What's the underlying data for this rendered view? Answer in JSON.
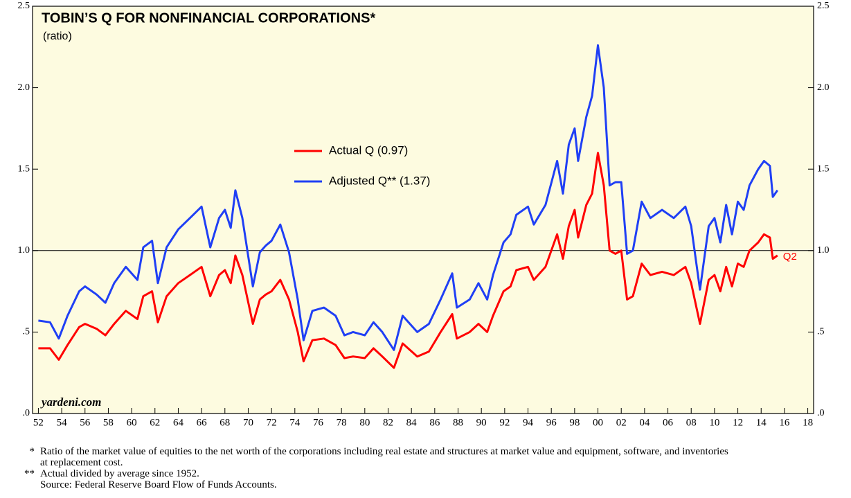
{
  "chart_data": {
    "type": "line",
    "title": "TOBIN’S Q FOR NONFINANCIAL CORPORATIONS*",
    "subtitle": "(ratio)",
    "watermark": "yardeni.com",
    "annotation": "Q2",
    "legend": "center",
    "background": "#fdfbe0",
    "hline": 1,
    "xlim": [
      1951.5,
      2018.5
    ],
    "xticks": [
      {
        "value": 1952,
        "label": "52"
      },
      {
        "value": 1954,
        "label": "54"
      },
      {
        "value": 1956,
        "label": "56"
      },
      {
        "value": 1958,
        "label": "58"
      },
      {
        "value": 1960,
        "label": "60"
      },
      {
        "value": 1962,
        "label": "62"
      },
      {
        "value": 1964,
        "label": "64"
      },
      {
        "value": 1966,
        "label": "66"
      },
      {
        "value": 1968,
        "label": "68"
      },
      {
        "value": 1970,
        "label": "70"
      },
      {
        "value": 1972,
        "label": "72"
      },
      {
        "value": 1974,
        "label": "74"
      },
      {
        "value": 1976,
        "label": "76"
      },
      {
        "value": 1978,
        "label": "78"
      },
      {
        "value": 1980,
        "label": "80"
      },
      {
        "value": 1982,
        "label": "82"
      },
      {
        "value": 1984,
        "label": "84"
      },
      {
        "value": 1986,
        "label": "86"
      },
      {
        "value": 1988,
        "label": "88"
      },
      {
        "value": 1990,
        "label": "90"
      },
      {
        "value": 1992,
        "label": "92"
      },
      {
        "value": 1994,
        "label": "94"
      },
      {
        "value": 1996,
        "label": "96"
      },
      {
        "value": 1998,
        "label": "98"
      },
      {
        "value": 2000,
        "label": "00"
      },
      {
        "value": 2002,
        "label": "02"
      },
      {
        "value": 2004,
        "label": "04"
      },
      {
        "value": 2006,
        "label": "06"
      },
      {
        "value": 2008,
        "label": "08"
      },
      {
        "value": 2010,
        "label": "10"
      },
      {
        "value": 2012,
        "label": "12"
      },
      {
        "value": 2014,
        "label": "14"
      },
      {
        "value": 2016,
        "label": "16"
      },
      {
        "value": 2018,
        "label": "18"
      }
    ],
    "ylim": [
      0,
      2.5
    ],
    "yticks": [
      {
        "value": 0,
        "label": ".0"
      },
      {
        "value": 0.5,
        "label": ".5"
      },
      {
        "value": 1,
        "label": "1.0"
      },
      {
        "value": 1.5,
        "label": "1.5"
      },
      {
        "value": 2,
        "label": "2.0"
      },
      2.5
    ],
    "y2lim": [
      0,
      2.5
    ],
    "y2ticks": [
      {
        "value": 0,
        "label": ".0"
      },
      {
        "value": 0.5,
        "label": ".5"
      },
      {
        "value": 1,
        "label": "1.0"
      },
      {
        "value": 1.5,
        "label": "1.5"
      },
      {
        "value": 2,
        "label": "2.0"
      },
      2.5
    ],
    "x": [
      1952,
      1953,
      1953.75,
      1954.5,
      1955.5,
      1956,
      1957,
      1957.75,
      1958.5,
      1959.5,
      1960.5,
      1961,
      1961.75,
      1962.25,
      1963,
      1964,
      1965,
      1966,
      1966.75,
      1967.5,
      1968,
      1968.5,
      1968.9,
      1969.5,
      1970.4,
      1971,
      1971.5,
      1972,
      1972.75,
      1973.5,
      1974.25,
      1974.75,
      1975.5,
      1976.5,
      1977.5,
      1978.25,
      1979,
      1980,
      1980.75,
      1981.5,
      1982.5,
      1983.25,
      1984.5,
      1985.5,
      1986.5,
      1987.5,
      1987.9,
      1989,
      1989.75,
      1990.5,
      1991,
      1991.9,
      1992.5,
      1993,
      1994,
      1994.5,
      1995.5,
      1996.5,
      1997,
      1997.5,
      1998,
      1998.3,
      1999,
      1999.5,
      2000,
      2000.5,
      2001,
      2001.5,
      2002,
      2002.5,
      2003,
      2003.75,
      2004.5,
      2005.5,
      2006.5,
      2007.5,
      2008,
      2008.75,
      2009.5,
      2010,
      2010.5,
      2011,
      2011.5,
      2012,
      2012.5,
      2013,
      2013.75,
      2014.25,
      2014.75,
      2015,
      2015.4
    ],
    "series": [
      {
        "name": "Actual Q (0.97)",
        "color": "#ff0000",
        "values": [
          0.4,
          0.4,
          0.33,
          0.42,
          0.53,
          0.55,
          0.52,
          0.48,
          0.55,
          0.63,
          0.58,
          0.72,
          0.75,
          0.56,
          0.72,
          0.8,
          0.85,
          0.9,
          0.72,
          0.85,
          0.88,
          0.8,
          0.97,
          0.85,
          0.55,
          0.7,
          0.73,
          0.75,
          0.82,
          0.7,
          0.5,
          0.32,
          0.45,
          0.46,
          0.42,
          0.34,
          0.35,
          0.34,
          0.4,
          0.35,
          0.28,
          0.43,
          0.35,
          0.38,
          0.5,
          0.61,
          0.46,
          0.5,
          0.55,
          0.5,
          0.6,
          0.75,
          0.78,
          0.88,
          0.9,
          0.82,
          0.9,
          1.1,
          0.95,
          1.15,
          1.25,
          1.08,
          1.28,
          1.35,
          1.6,
          1.4,
          1.0,
          0.98,
          1.0,
          0.7,
          0.72,
          0.92,
          0.85,
          0.87,
          0.85,
          0.9,
          0.8,
          0.55,
          0.82,
          0.85,
          0.75,
          0.9,
          0.78,
          0.92,
          0.9,
          1.0,
          1.05,
          1.1,
          1.08,
          0.95,
          0.97
        ]
      },
      {
        "name": "Adjusted Q** (1.37)",
        "color": "#1f3ff5",
        "values": [
          0.57,
          0.56,
          0.46,
          0.6,
          0.75,
          0.78,
          0.73,
          0.68,
          0.8,
          0.9,
          0.82,
          1.02,
          1.06,
          0.8,
          1.02,
          1.13,
          1.2,
          1.27,
          1.02,
          1.2,
          1.25,
          1.14,
          1.37,
          1.2,
          0.78,
          0.99,
          1.03,
          1.06,
          1.16,
          0.99,
          0.7,
          0.45,
          0.63,
          0.65,
          0.6,
          0.48,
          0.5,
          0.48,
          0.56,
          0.5,
          0.39,
          0.6,
          0.5,
          0.55,
          0.7,
          0.86,
          0.65,
          0.7,
          0.8,
          0.7,
          0.85,
          1.05,
          1.1,
          1.22,
          1.27,
          1.16,
          1.28,
          1.55,
          1.35,
          1.65,
          1.75,
          1.55,
          1.82,
          1.95,
          2.26,
          2.0,
          1.4,
          1.42,
          1.42,
          0.98,
          1.0,
          1.3,
          1.2,
          1.25,
          1.2,
          1.27,
          1.15,
          0.76,
          1.15,
          1.2,
          1.05,
          1.28,
          1.1,
          1.3,
          1.25,
          1.4,
          1.5,
          1.55,
          1.52,
          1.33,
          1.37
        ]
      }
    ]
  },
  "footnotes": [
    {
      "mark": "*",
      "text": "Ratio of the market value of equities to the net worth of the corporations including real estate and structures at market value and equipment, software, and inventories at replacement cost."
    },
    {
      "mark": "**",
      "text": "Actual divided by average since 1952."
    }
  ],
  "source": "Source: Federal Reserve Board Flow of Funds Accounts."
}
